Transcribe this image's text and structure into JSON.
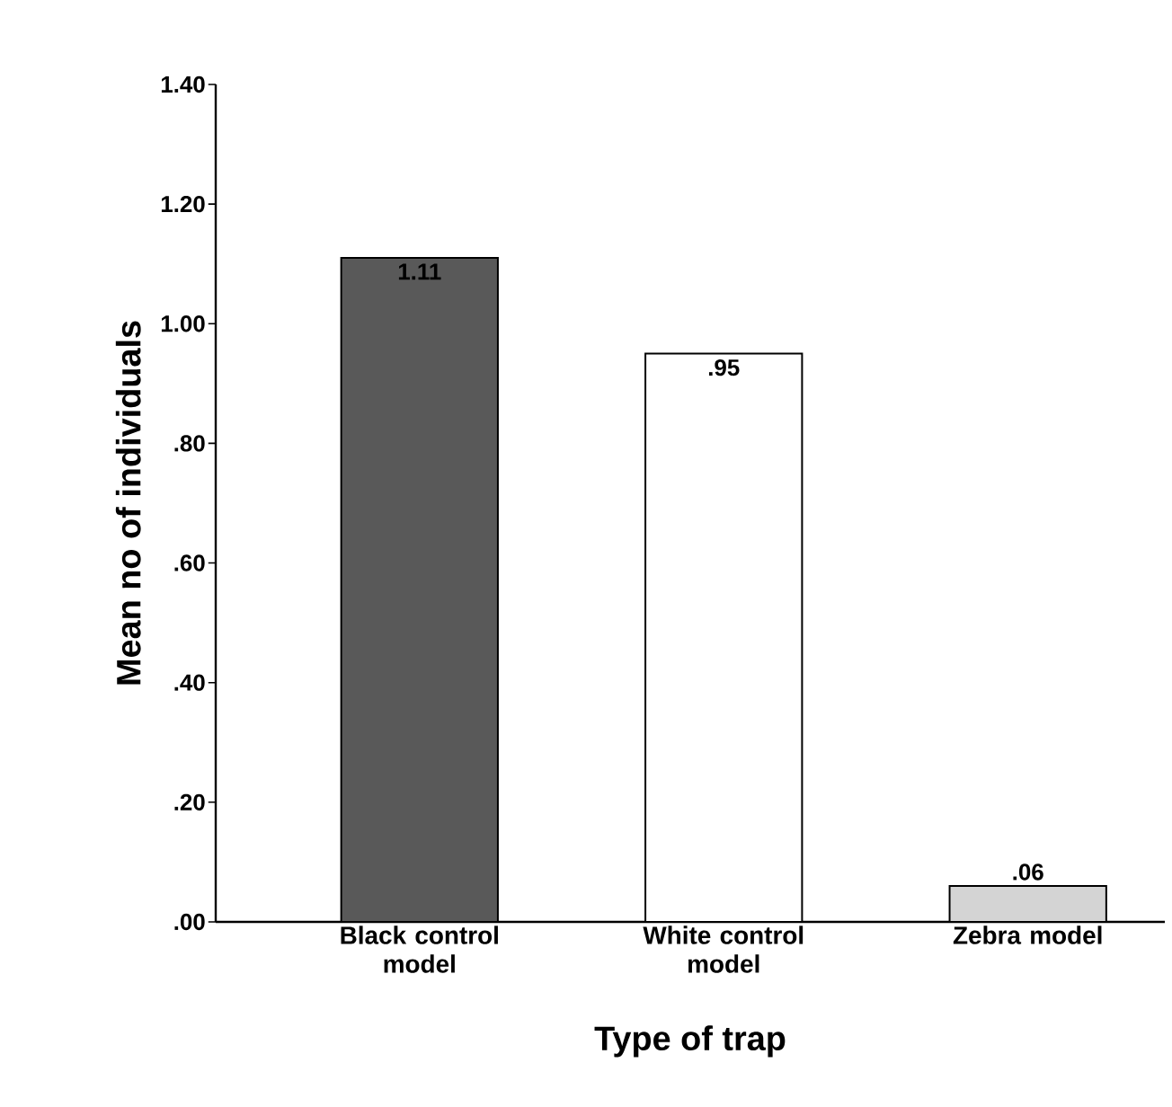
{
  "chart_data": {
    "type": "bar",
    "xlabel": "Type of trap",
    "ylabel": "Mean no of individuals",
    "categories": [
      "Black control model",
      "White control model",
      "Zebra model"
    ],
    "values": [
      1.11,
      0.95,
      0.06
    ],
    "colors": [
      "#595959",
      "#ffffff",
      "#d4d4d4"
    ],
    "value_labels": [
      "1.11",
      ".95",
      ".06"
    ],
    "ylim": [
      0,
      1.4
    ],
    "yticks": [
      {
        "value": 0,
        "label": ".00"
      },
      {
        "value": 0.2,
        "label": ".20"
      },
      {
        "value": 0.4,
        "label": ".40"
      },
      {
        "value": 0.6,
        "label": ".60"
      },
      {
        "value": 0.8,
        "label": ".80"
      },
      {
        "value": 1.0,
        "label": "1.00"
      },
      {
        "value": 1.2,
        "label": "1.20"
      },
      {
        "value": 1.4,
        "label": "1.40"
      }
    ],
    "grid": false
  }
}
